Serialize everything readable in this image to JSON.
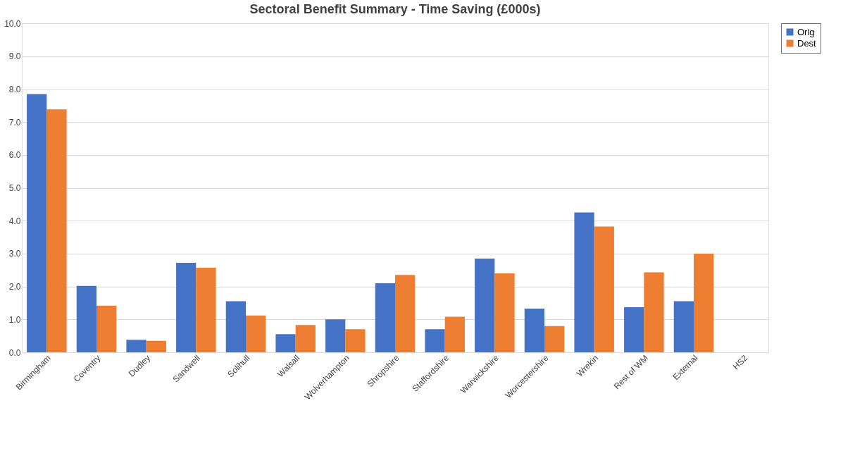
{
  "chart_data": {
    "type": "bar",
    "title": "Sectoral Benefit Summary - Time Saving (£000s)",
    "categories": [
      "Birmingham",
      "Coventry",
      "Dudley",
      "Sandwell",
      "Solihull",
      "Walsall",
      "Wolverhampton",
      "Shropshire",
      "Staffordshire",
      "Warwickshire",
      "Worcestershire",
      "Wrekin",
      "Rest of WM",
      "External",
      "HS2"
    ],
    "series": [
      {
        "name": "Orig",
        "color": "#4472c4",
        "values": [
          7.85,
          2.02,
          0.38,
          2.72,
          1.55,
          0.55,
          1.0,
          2.1,
          0.7,
          2.85,
          1.33,
          4.25,
          1.37,
          1.55,
          null
        ]
      },
      {
        "name": "Dest",
        "color": "#ed7d31",
        "values": [
          7.38,
          1.42,
          0.35,
          2.57,
          1.12,
          0.83,
          0.7,
          2.35,
          1.08,
          2.4,
          0.8,
          3.82,
          2.43,
          3.0,
          null
        ]
      }
    ],
    "ylim": [
      0,
      10
    ],
    "yticks": [
      {
        "value": 0,
        "label": "0.0"
      },
      {
        "value": 1,
        "label": "1.0"
      },
      {
        "value": 2,
        "label": "2.0"
      },
      {
        "value": 3,
        "label": "3.0"
      },
      {
        "value": 4,
        "label": "4.0"
      },
      {
        "value": 5,
        "label": "5.0"
      },
      {
        "value": 6,
        "label": "6.0"
      },
      {
        "value": 7,
        "label": "7.0"
      },
      {
        "value": 8,
        "label": "8.0"
      },
      {
        "value": 9,
        "label": "9.0"
      },
      {
        "value": 10,
        "label": "10.0"
      }
    ],
    "grid": "y",
    "legend": "right"
  }
}
